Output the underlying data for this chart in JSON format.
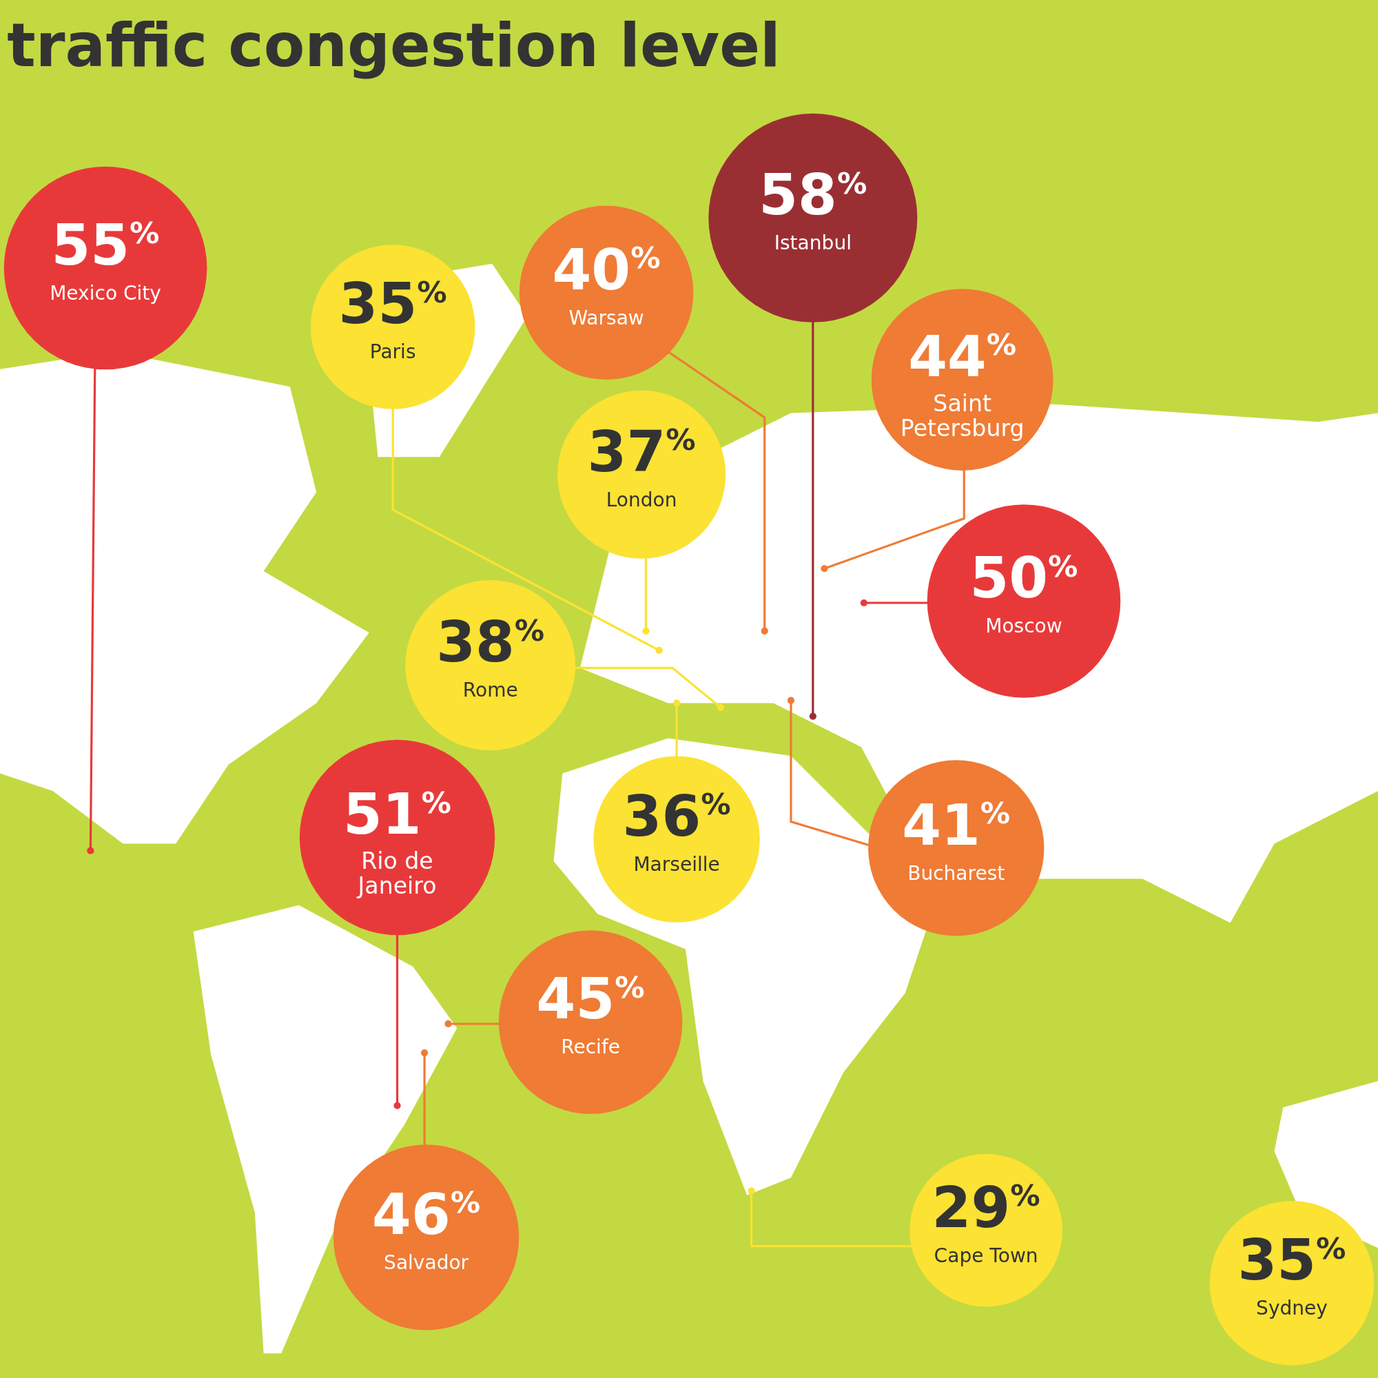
{
  "chart_data": {
    "type": "other",
    "title": "traffic congestion level",
    "categories": [
      "Mexico City",
      "Paris",
      "Warsaw",
      "Istanbul",
      "Saint Petersburg",
      "London",
      "Moscow",
      "Rome",
      "Rio de Janeiro",
      "Marseille",
      "Bucharest",
      "Recife",
      "Salvador",
      "Cape Town",
      "Sydney"
    ],
    "values": [
      55,
      35,
      40,
      58,
      44,
      37,
      50,
      38,
      51,
      36,
      41,
      45,
      46,
      29,
      35
    ],
    "value_labels": [
      "55$^{%}$",
      "35$^{%}$",
      "40$^{%}$",
      "58$^{%}$",
      "44$^{%}$",
      "37$^{%}$",
      "50$^{%}$",
      "38$^{%}$",
      "51$^{%}$",
      "36$^{%}$",
      "41$^{%}$",
      "45$^{%}$",
      "46$^{%}$",
      "29$^{%}$",
      "35$^{%}$"
    ],
    "colors": [
      "#e8393a",
      "#fbe233",
      "#ef7b35",
      "#9a2f33",
      "#ef7b35",
      "#fbe233",
      "#e8393a",
      "#fbe233",
      "#e8393a",
      "#fbe233",
      "#ef7b35",
      "#ef7b35",
      "#ef7b35",
      "#fbe233",
      "#fbe233"
    ]
  }
}
